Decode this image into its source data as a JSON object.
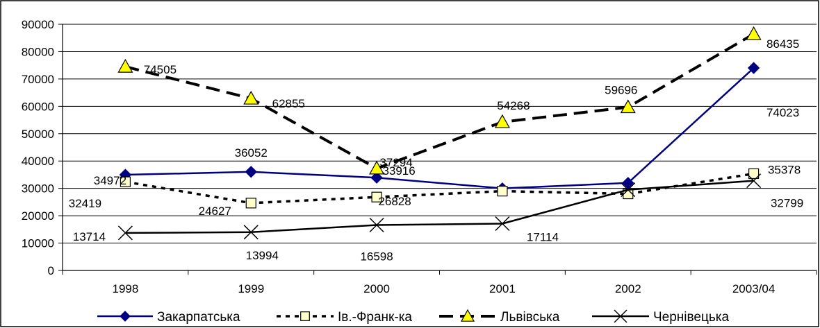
{
  "chart_data": {
    "type": "line",
    "categories": [
      "1998",
      "1999",
      "2000",
      "2001",
      "2002",
      "2003/04"
    ],
    "ylim": [
      0,
      90000
    ],
    "yticks": [
      "0",
      "10000",
      "20000",
      "30000",
      "40000",
      "50000",
      "60000",
      "70000",
      "80000",
      "90000"
    ],
    "grid": true,
    "legend_position": "bottom",
    "series": [
      {
        "name": "Закарпатська",
        "values": [
          34972,
          36052,
          33916,
          30000,
          32000,
          74023
        ],
        "labels": [
          "34972",
          "36052",
          "33916",
          "",
          "",
          "74023"
        ],
        "color": "#000080",
        "marker": "diamond",
        "dash": "solid"
      },
      {
        "name": "Ів.-Франк-ка",
        "values": [
          32419,
          24627,
          26828,
          29000,
          28000,
          35378
        ],
        "labels": [
          "32419",
          "24627",
          "26828",
          "",
          "",
          "35378"
        ],
        "color": "#000000",
        "marker": "square",
        "dash": "dotted"
      },
      {
        "name": "Львівська",
        "values": [
          74505,
          62855,
          37294,
          54268,
          59696,
          86435
        ],
        "labels": [
          "74505",
          "62855",
          "37294",
          "54268",
          "59696",
          "86435"
        ],
        "color": "#000000",
        "marker": "triangle",
        "dash": "dashed"
      },
      {
        "name": "Чернівецька",
        "values": [
          13714,
          13994,
          16598,
          17114,
          29500,
          32799
        ],
        "labels": [
          "13714",
          "13994",
          "16598",
          "17114",
          "",
          "32799"
        ],
        "color": "#000000",
        "marker": "cross",
        "dash": "solid"
      }
    ]
  }
}
